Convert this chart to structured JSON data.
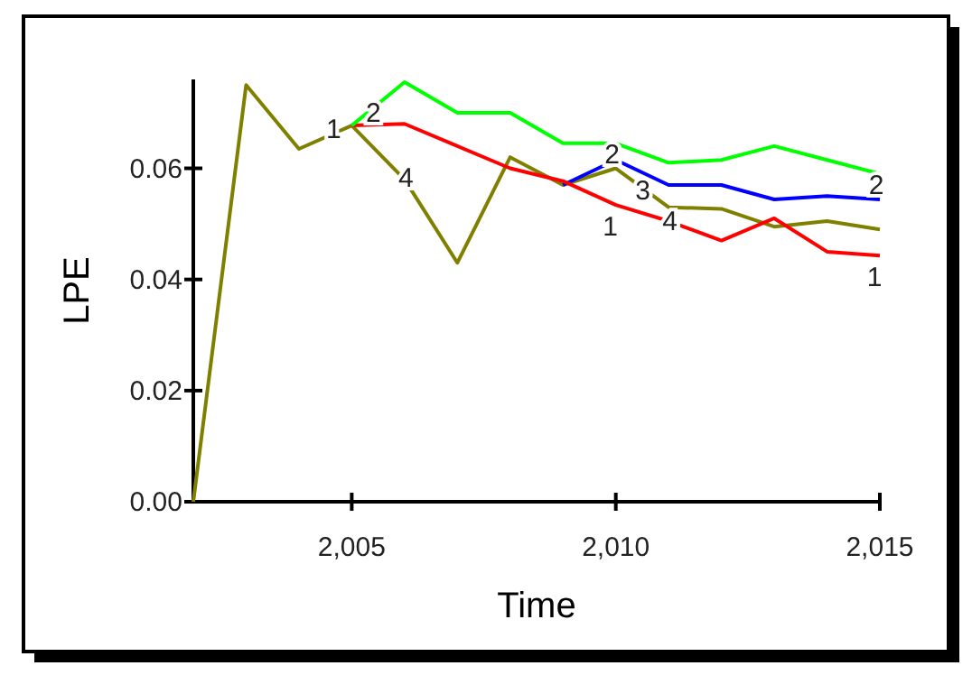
{
  "chart_data": {
    "type": "line",
    "xlabel": "Time",
    "ylabel": "LPE",
    "xlim": [
      2002,
      2015
    ],
    "ylim": [
      0,
      0.076
    ],
    "xticks": [
      {
        "value": 2005,
        "label": "2,005"
      },
      {
        "value": 2010,
        "label": "2,010"
      },
      {
        "value": 2015,
        "label": "2,015"
      }
    ],
    "yticks": [
      {
        "value": 0,
        "label": "0.00"
      },
      {
        "value": 0.02,
        "label": "0.02"
      },
      {
        "value": 0.04,
        "label": "0.04"
      },
      {
        "value": 0.06,
        "label": "0.06"
      }
    ],
    "grid": false,
    "line_style": "solid",
    "series": [
      {
        "name": "4",
        "color": "#808000",
        "x": [
          2002,
          2003,
          2004,
          2005,
          2006,
          2007,
          2008,
          2009,
          2010,
          2011,
          2012,
          2013,
          2014,
          2015
        ],
        "values": [
          0,
          0.075,
          0.0635,
          0.0677,
          0.058,
          0.043,
          0.062,
          0.057,
          0.06,
          0.053,
          0.0527,
          0.0495,
          0.0505,
          0.049
        ]
      },
      {
        "name": "3",
        "color": "#0000ff",
        "x": [
          2009,
          2010,
          2011,
          2012,
          2013,
          2014,
          2015
        ],
        "values": [
          0.057,
          0.0615,
          0.057,
          0.057,
          0.0544,
          0.055,
          0.0544
        ]
      },
      {
        "name": "1",
        "color": "#ff0000",
        "x": [
          2005,
          2006,
          2007,
          2008,
          2009,
          2010,
          2011,
          2012,
          2013,
          2014,
          2015
        ],
        "values": [
          0.0677,
          0.068,
          0.064,
          0.06,
          0.0577,
          0.0534,
          0.0505,
          0.047,
          0.051,
          0.045,
          0.0443
        ]
      },
      {
        "name": "2",
        "color": "#00ff00",
        "x": [
          2005,
          2006,
          2007,
          2008,
          2009,
          2010,
          2011,
          2012,
          2013,
          2014,
          2015
        ],
        "values": [
          0.0677,
          0.0755,
          0.07,
          0.07,
          0.0645,
          0.0645,
          0.061,
          0.0615,
          0.064,
          0.0615,
          0.059
        ]
      }
    ]
  }
}
